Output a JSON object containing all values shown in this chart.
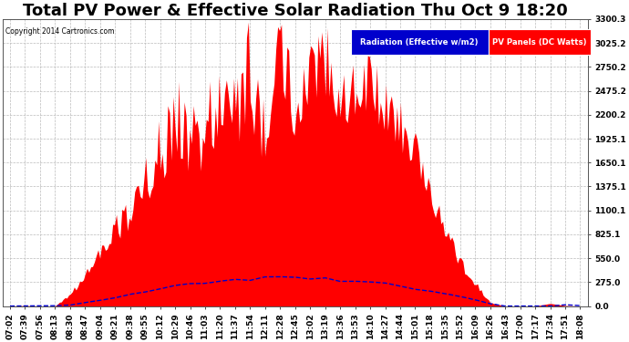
{
  "title": "Total PV Power & Effective Solar Radiation Thu Oct 9 18:20",
  "copyright": "Copyright 2014 Cartronics.com",
  "legend_radiation": "Radiation (Effective w/m2)",
  "legend_pv": "PV Panels (DC Watts)",
  "ylim": [
    0,
    3300.3
  ],
  "yticks": [
    0.0,
    275.0,
    550.0,
    825.1,
    1100.1,
    1375.1,
    1650.1,
    1925.1,
    2200.2,
    2475.2,
    2750.2,
    3025.2,
    3300.3
  ],
  "xtick_labels": [
    "07:02",
    "07:39",
    "07:56",
    "08:13",
    "08:30",
    "08:47",
    "09:04",
    "09:21",
    "09:38",
    "09:55",
    "10:12",
    "10:29",
    "10:46",
    "11:03",
    "11:20",
    "11:37",
    "11:54",
    "12:11",
    "12:28",
    "12:45",
    "13:02",
    "13:19",
    "13:36",
    "13:53",
    "14:10",
    "14:27",
    "14:44",
    "15:01",
    "15:18",
    "15:35",
    "15:52",
    "16:09",
    "16:26",
    "16:43",
    "17:00",
    "17:17",
    "17:34",
    "17:51",
    "18:08"
  ],
  "background_color": "#ffffff",
  "grid_color": "#bbbbbb",
  "pv_color": "#ff0000",
  "radiation_color": "#0000cc",
  "legend_radiation_bg": "#0000cc",
  "legend_pv_bg": "#ff0000",
  "title_fontsize": 13,
  "tick_fontsize": 6.5
}
